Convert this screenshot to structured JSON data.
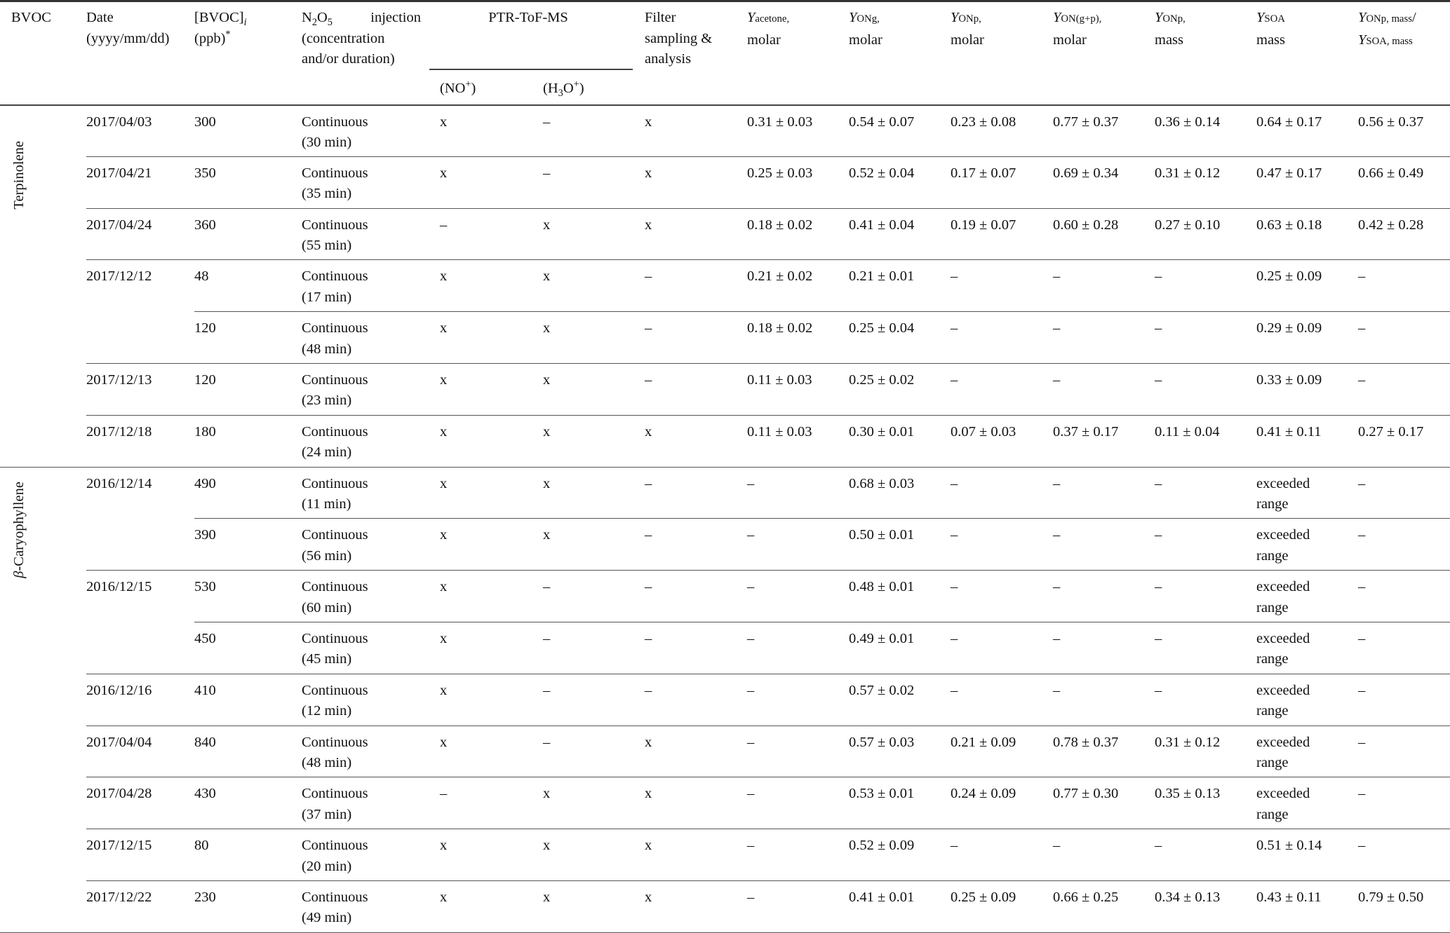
{
  "header": {
    "bvoc": "BVOC",
    "date": "Date\n(yyyy/mm/dd)",
    "conc_main": "[BVOC]",
    "conc_sub": "i",
    "conc_unit": "(ppb)",
    "conc_star": "*",
    "n2o5_n": "N",
    "n2o5_2": "2",
    "n2o5_o": "O",
    "n2o5_5": "5",
    "n2o5_injection": "injection",
    "n2o5_rest": "(concentration\nand/or duration)",
    "ptr": "PTR-ToF-MS",
    "ptr_no": "(NO",
    "ptr_no_sup": "+",
    "ptr_no_close": ")",
    "ptr_h3o_a": "(H",
    "ptr_h3o_3": "3",
    "ptr_h3o_b": "O",
    "ptr_h3o_sup": "+",
    "ptr_h3o_close": ")",
    "filter": "Filter\nsampling &\nanalysis",
    "yields": [
      {
        "y": "Y",
        "sub": "acetone,",
        "line2": "molar"
      },
      {
        "y": "Y",
        "sub": "ONg,",
        "line2": "molar"
      },
      {
        "y": "Y",
        "sub": "ONp,",
        "line2": "molar"
      },
      {
        "y": "Y",
        "sub": "ON(g+p),",
        "line2": "molar"
      },
      {
        "y": "Y",
        "sub": "ONp,",
        "line2": "mass"
      },
      {
        "y": "Y",
        "sub": "SOA",
        "line2": "mass"
      }
    ],
    "ratio": {
      "y1": "Y",
      "sub1": "ONp, mass",
      "slash": "/",
      "y2": "Y",
      "sub2": "SOA, mass"
    }
  },
  "groups": [
    {
      "bvoc": "Terpinolene",
      "bvoc_prefix": "",
      "rows": [
        {
          "date": "2017/04/03",
          "date_span": 1,
          "conc": "300",
          "n2o5": "Continuous\n(30 min)",
          "no": "x",
          "h3o": "–",
          "filter": "x",
          "y_acetone": "0.31 ± 0.03",
          "y_ong": "0.54 ± 0.07",
          "y_onp": "0.23 ± 0.08",
          "y_ongp": "0.77 ± 0.37",
          "y_onp_mass": "0.36 ± 0.14",
          "y_soa": "0.64 ± 0.17",
          "ratio": "0.56 ± 0.37"
        },
        {
          "date": "2017/04/21",
          "date_span": 1,
          "conc": "350",
          "n2o5": "Continuous\n(35 min)",
          "no": "x",
          "h3o": "–",
          "filter": "x",
          "y_acetone": "0.25 ± 0.03",
          "y_ong": "0.52 ± 0.04",
          "y_onp": "0.17 ± 0.07",
          "y_ongp": "0.69 ± 0.34",
          "y_onp_mass": "0.31 ± 0.12",
          "y_soa": "0.47 ± 0.17",
          "ratio": "0.66 ± 0.49"
        },
        {
          "date": "2017/04/24",
          "date_span": 1,
          "conc": "360",
          "n2o5": "Continuous\n(55 min)",
          "no": "–",
          "h3o": "x",
          "filter": "x",
          "y_acetone": "0.18 ± 0.02",
          "y_ong": "0.41 ± 0.04",
          "y_onp": "0.19 ± 0.07",
          "y_ongp": "0.60 ± 0.28",
          "y_onp_mass": "0.27 ± 0.10",
          "y_soa": "0.63 ± 0.18",
          "ratio": "0.42 ± 0.28"
        },
        {
          "date": "2017/12/12",
          "date_span": 2,
          "conc": "48",
          "n2o5": "Continuous\n(17 min)",
          "no": "x",
          "h3o": "x",
          "filter": "–",
          "y_acetone": "0.21 ± 0.02",
          "y_ong": "0.21 ± 0.01",
          "y_onp": "–",
          "y_ongp": "–",
          "y_onp_mass": "–",
          "y_soa": "0.25 ± 0.09",
          "ratio": "–"
        },
        {
          "date": null,
          "conc": "120",
          "n2o5": "Continuous\n(48 min)",
          "no": "x",
          "h3o": "x",
          "filter": "–",
          "y_acetone": "0.18 ± 0.02",
          "y_ong": "0.25 ± 0.04",
          "y_onp": "–",
          "y_ongp": "–",
          "y_onp_mass": "–",
          "y_soa": "0.29 ± 0.09",
          "ratio": "–"
        },
        {
          "date": "2017/12/13",
          "date_span": 1,
          "conc": "120",
          "n2o5": "Continuous\n(23 min)",
          "no": "x",
          "h3o": "x",
          "filter": "–",
          "y_acetone": "0.11 ± 0.03",
          "y_ong": "0.25 ± 0.02",
          "y_onp": "–",
          "y_ongp": "–",
          "y_onp_mass": "–",
          "y_soa": "0.33 ± 0.09",
          "ratio": "–"
        },
        {
          "date": "2017/12/18",
          "date_span": 1,
          "conc": "180",
          "n2o5": "Continuous\n(24 min)",
          "no": "x",
          "h3o": "x",
          "filter": "x",
          "y_acetone": "0.11 ± 0.03",
          "y_ong": "0.30 ± 0.01",
          "y_onp": "0.07 ± 0.03",
          "y_ongp": "0.37 ± 0.17",
          "y_onp_mass": "0.11 ± 0.04",
          "y_soa": "0.41 ± 0.11",
          "ratio": "0.27 ± 0.17"
        }
      ]
    },
    {
      "bvoc": "-Caryophyllene",
      "bvoc_prefix": "β",
      "rows": [
        {
          "date": "2016/12/14",
          "date_span": 2,
          "conc": "490",
          "n2o5": "Continuous\n(11 min)",
          "no": "x",
          "h3o": "x",
          "filter": "–",
          "y_acetone": "–",
          "y_ong": "0.68 ± 0.03",
          "y_onp": "–",
          "y_ongp": "–",
          "y_onp_mass": "–",
          "y_soa": "exceeded\nrange",
          "ratio": "–"
        },
        {
          "date": null,
          "conc": "390",
          "n2o5": "Continuous\n(56 min)",
          "no": "x",
          "h3o": "x",
          "filter": "–",
          "y_acetone": "–",
          "y_ong": "0.50 ± 0.01",
          "y_onp": "–",
          "y_ongp": "–",
          "y_onp_mass": "–",
          "y_soa": "exceeded\nrange",
          "ratio": "–"
        },
        {
          "date": "2016/12/15",
          "date_span": 2,
          "conc": "530",
          "n2o5": "Continuous\n(60 min)",
          "no": "x",
          "h3o": "–",
          "filter": "–",
          "y_acetone": "–",
          "y_ong": "0.48 ± 0.01",
          "y_onp": "–",
          "y_ongp": "–",
          "y_onp_mass": "–",
          "y_soa": "exceeded\nrange",
          "ratio": "–"
        },
        {
          "date": null,
          "conc": "450",
          "n2o5": "Continuous\n(45 min)",
          "no": "x",
          "h3o": "–",
          "filter": "–",
          "y_acetone": "–",
          "y_ong": "0.49 ± 0.01",
          "y_onp": "–",
          "y_ongp": "–",
          "y_onp_mass": "–",
          "y_soa": "exceeded\nrange",
          "ratio": "–"
        },
        {
          "date": "2016/12/16",
          "date_span": 1,
          "conc": "410",
          "n2o5": "Continuous\n(12 min)",
          "no": "x",
          "h3o": "–",
          "filter": "–",
          "y_acetone": "–",
          "y_ong": "0.57 ± 0.02",
          "y_onp": "–",
          "y_ongp": "–",
          "y_onp_mass": "–",
          "y_soa": "exceeded\nrange",
          "ratio": "–"
        },
        {
          "date": "2017/04/04",
          "date_span": 1,
          "conc": "840",
          "n2o5": "Continuous\n(48 min)",
          "no": "x",
          "h3o": "–",
          "filter": "x",
          "y_acetone": "–",
          "y_ong": "0.57 ± 0.03",
          "y_onp": "0.21 ± 0.09",
          "y_ongp": "0.78 ± 0.37",
          "y_onp_mass": "0.31 ± 0.12",
          "y_soa": "exceeded\nrange",
          "ratio": "–"
        },
        {
          "date": "2017/04/28",
          "date_span": 1,
          "conc": "430",
          "n2o5": "Continuous\n(37 min)",
          "no": "–",
          "h3o": "x",
          "filter": "x",
          "y_acetone": "–",
          "y_ong": "0.53 ± 0.01",
          "y_onp": "0.24 ± 0.09",
          "y_ongp": "0.77 ± 0.30",
          "y_onp_mass": "0.35 ± 0.13",
          "y_soa": "exceeded\nrange",
          "ratio": "–"
        },
        {
          "date": "2017/12/15",
          "date_span": 1,
          "conc": "80",
          "n2o5": "Continuous\n(20 min)",
          "no": "x",
          "h3o": "x",
          "filter": "x",
          "y_acetone": "–",
          "y_ong": "0.52 ± 0.09",
          "y_onp": "–",
          "y_ongp": "–",
          "y_onp_mass": "–",
          "y_soa": "0.51 ± 0.14",
          "ratio": "–"
        },
        {
          "date": "2017/12/22",
          "date_span": 1,
          "conc": "230",
          "n2o5": "Continuous\n(49 min)",
          "no": "x",
          "h3o": "x",
          "filter": "x",
          "y_acetone": "–",
          "y_ong": "0.41 ± 0.01",
          "y_onp": "0.25 ± 0.09",
          "y_ongp": "0.66 ± 0.25",
          "y_onp_mass": "0.34 ± 0.13",
          "y_soa": "0.43 ± 0.11",
          "ratio": "0.79 ± 0.50"
        }
      ]
    }
  ]
}
